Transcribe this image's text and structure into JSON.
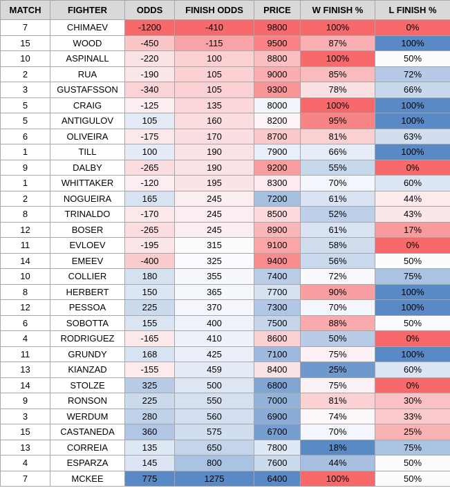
{
  "table": {
    "headers": [
      "MATCH",
      "FIGHTER",
      "ODDS",
      "FINISH ODDS",
      "PRICE",
      "W FINISH %",
      "L FINISH %"
    ],
    "rows": [
      [
        7,
        "CHIMAEV",
        -1200,
        -410,
        9800,
        "100%",
        "0%"
      ],
      [
        15,
        "WOOD",
        -450,
        -115,
        9500,
        "87%",
        "100%"
      ],
      [
        10,
        "ASPINALL",
        -220,
        100,
        8800,
        "100%",
        "50%"
      ],
      [
        2,
        "RUA",
        -190,
        105,
        9000,
        "85%",
        "72%"
      ],
      [
        3,
        "GUSTAFSSON",
        -340,
        105,
        9300,
        "78%",
        "66%"
      ],
      [
        5,
        "CRAIG",
        -125,
        135,
        8000,
        "100%",
        "100%"
      ],
      [
        5,
        "ANTIGULOV",
        105,
        160,
        8200,
        "95%",
        "100%"
      ],
      [
        6,
        "OLIVEIRA",
        -175,
        170,
        8700,
        "81%",
        "63%"
      ],
      [
        1,
        "TILL",
        100,
        190,
        7900,
        "66%",
        "100%"
      ],
      [
        9,
        "DALBY",
        -265,
        190,
        9200,
        "55%",
        "0%"
      ],
      [
        1,
        "WHITTAKER",
        -120,
        195,
        8300,
        "70%",
        "60%"
      ],
      [
        2,
        "NOGUEIRA",
        165,
        245,
        7200,
        "61%",
        "44%"
      ],
      [
        8,
        "TRINALDO",
        -170,
        245,
        8500,
        "52%",
        "43%"
      ],
      [
        12,
        "BOSER",
        -265,
        245,
        8900,
        "61%",
        "17%"
      ],
      [
        11,
        "EVLOEV",
        -195,
        315,
        9100,
        "58%",
        "0%"
      ],
      [
        14,
        "EMEEV",
        -400,
        325,
        9400,
        "56%",
        "50%"
      ],
      [
        10,
        "COLLIER",
        180,
        355,
        7400,
        "72%",
        "75%"
      ],
      [
        8,
        "HERBERT",
        150,
        365,
        7700,
        "90%",
        "100%"
      ],
      [
        12,
        "PESSOA",
        225,
        370,
        7300,
        "70%",
        "100%"
      ],
      [
        6,
        "SOBOTTA",
        155,
        400,
        7500,
        "88%",
        "50%"
      ],
      [
        4,
        "RODRIGUEZ",
        -165,
        410,
        8600,
        "50%",
        "0%"
      ],
      [
        11,
        "GRUNDY",
        168,
        425,
        7100,
        "75%",
        "100%"
      ],
      [
        13,
        "KIANZAD",
        -155,
        459,
        8400,
        "25%",
        "60%"
      ],
      [
        14,
        "STOLZE",
        325,
        500,
        6800,
        "75%",
        "0%"
      ],
      [
        9,
        "RONSON",
        225,
        550,
        7000,
        "81%",
        "30%"
      ],
      [
        3,
        "WERDUM",
        280,
        560,
        6900,
        "74%",
        "33%"
      ],
      [
        15,
        "CASTANEDA",
        360,
        575,
        6700,
        "70%",
        "25%"
      ],
      [
        13,
        "CORREIA",
        135,
        650,
        7800,
        "18%",
        "75%"
      ],
      [
        4,
        "ESPARZA",
        145,
        800,
        7600,
        "44%",
        "50%"
      ],
      [
        7,
        "MCKEE",
        775,
        1275,
        6400,
        "100%",
        "50%"
      ]
    ],
    "color_scales": [
      {
        "column": 2,
        "min_color": "#f8696b",
        "mid_color": "#fcfcff",
        "max_color": "#5a8ac6"
      },
      {
        "column": 3,
        "min_color": "#f8696b",
        "mid_color": "#fcfcff",
        "max_color": "#5a8ac6"
      },
      {
        "column": 4,
        "min_color": "#5a8ac6",
        "mid_color": "#fcfcff",
        "max_color": "#f8696b"
      },
      {
        "column": 5,
        "min_color": "#5a8ac6",
        "mid_color": "#fcfcff",
        "max_color": "#f8696b"
      },
      {
        "column": 6,
        "min_color": "#f8696b",
        "mid_color": "#fcfcff",
        "max_color": "#5a8ac6"
      }
    ]
  }
}
